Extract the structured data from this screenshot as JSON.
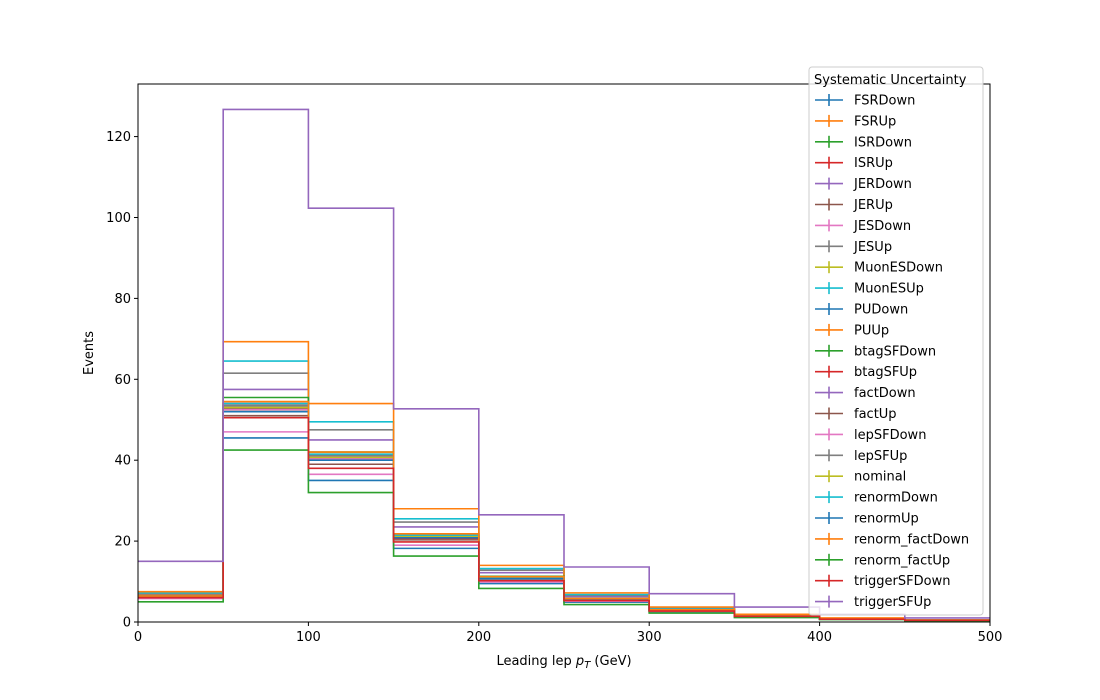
{
  "chart_data": {
    "type": "line",
    "title": "",
    "xlabel": "Leading lep p_T (GeV)",
    "ylabel": "Events",
    "xlim": [
      0,
      500
    ],
    "ylim": [
      0,
      133
    ],
    "grid": false,
    "legend_title": "Systematic Uncertainty",
    "legend_position": "top-right",
    "bin_edges": [
      0,
      50,
      100,
      150,
      200,
      250,
      300,
      350,
      400,
      450,
      500
    ],
    "x_ticks": [
      0,
      100,
      200,
      300,
      400,
      500
    ],
    "y_ticks": [
      0,
      20,
      40,
      60,
      80,
      100,
      120
    ],
    "series": [
      {
        "name": "FSRDown",
        "color": "#1f77b4",
        "values": [
          5.9,
          45.5,
          35.0,
          18.2,
          9.5,
          4.9,
          2.5,
          1.3,
          0.7,
          0.4
        ]
      },
      {
        "name": "FSRUp",
        "color": "#ff7f0e",
        "values": [
          6.8,
          54.0,
          41.5,
          21.5,
          11.2,
          5.8,
          3.0,
          1.5,
          0.8,
          0.4
        ]
      },
      {
        "name": "ISRDown",
        "color": "#2ca02c",
        "values": [
          6.1,
          52.5,
          40.0,
          20.8,
          10.8,
          5.6,
          2.9,
          1.5,
          0.8,
          0.4
        ]
      },
      {
        "name": "ISRUp",
        "color": "#d62728",
        "values": [
          6.4,
          53.5,
          41.0,
          21.2,
          11.0,
          5.7,
          2.9,
          1.5,
          0.8,
          0.4
        ]
      },
      {
        "name": "JERDown",
        "color": "#9467bd",
        "values": [
          6.5,
          57.5,
          45.0,
          23.5,
          12.2,
          6.3,
          3.3,
          1.7,
          0.9,
          0.5
        ]
      },
      {
        "name": "JERUp",
        "color": "#8c564b",
        "values": [
          6.0,
          51.0,
          39.0,
          20.3,
          10.6,
          5.5,
          2.8,
          1.4,
          0.7,
          0.4
        ]
      },
      {
        "name": "JESDown",
        "color": "#e377c2",
        "values": [
          5.8,
          47.0,
          36.5,
          19.0,
          9.9,
          5.1,
          2.6,
          1.4,
          0.7,
          0.4
        ]
      },
      {
        "name": "JESUp",
        "color": "#7f7f7f",
        "values": [
          7.0,
          61.5,
          47.5,
          24.7,
          12.8,
          6.6,
          3.4,
          1.8,
          0.9,
          0.5
        ]
      },
      {
        "name": "MuonESDown",
        "color": "#bcbd22",
        "values": [
          6.2,
          53.0,
          40.5,
          21.0,
          10.9,
          5.6,
          2.9,
          1.5,
          0.8,
          0.4
        ]
      },
      {
        "name": "MuonESUp",
        "color": "#17becf",
        "values": [
          7.2,
          64.5,
          49.5,
          25.5,
          13.2,
          6.8,
          3.5,
          1.8,
          0.9,
          0.5
        ]
      },
      {
        "name": "PUDown",
        "color": "#1f77b4",
        "values": [
          6.3,
          53.0,
          41.0,
          21.2,
          11.0,
          5.7,
          2.9,
          1.5,
          0.8,
          0.4
        ]
      },
      {
        "name": "PUUp",
        "color": "#ff7f0e",
        "values": [
          7.5,
          69.3,
          54.0,
          28.0,
          14.0,
          7.2,
          3.7,
          1.9,
          1.0,
          0.5
        ]
      },
      {
        "name": "btagSFDown",
        "color": "#2ca02c",
        "values": [
          6.4,
          55.5,
          42.0,
          21.8,
          11.3,
          5.8,
          3.0,
          1.5,
          0.8,
          0.4
        ]
      },
      {
        "name": "btagSFUp",
        "color": "#d62728",
        "values": [
          6.1,
          52.0,
          40.2,
          20.7,
          10.7,
          5.5,
          2.8,
          1.4,
          0.7,
          0.4
        ]
      },
      {
        "name": "factDown",
        "color": "#9467bd",
        "values": [
          6.2,
          54.0,
          41.0,
          21.1,
          10.9,
          5.6,
          2.9,
          1.5,
          0.8,
          0.4
        ]
      },
      {
        "name": "factUp",
        "color": "#8c564b",
        "values": [
          6.2,
          52.8,
          40.5,
          21.0,
          10.8,
          5.6,
          2.9,
          1.5,
          0.8,
          0.4
        ]
      },
      {
        "name": "lepSFDown",
        "color": "#e377c2",
        "values": [
          6.1,
          52.5,
          40.3,
          20.9,
          10.8,
          5.6,
          2.9,
          1.5,
          0.8,
          0.4
        ]
      },
      {
        "name": "lepSFUp",
        "color": "#7f7f7f",
        "values": [
          6.3,
          53.5,
          41.2,
          21.3,
          11.0,
          5.7,
          2.9,
          1.5,
          0.8,
          0.4
        ]
      },
      {
        "name": "nominal",
        "color": "#bcbd22",
        "values": [
          6.2,
          53.0,
          40.7,
          21.1,
          10.9,
          5.6,
          2.9,
          1.5,
          0.8,
          0.4
        ]
      },
      {
        "name": "renormDown",
        "color": "#17becf",
        "values": [
          6.3,
          54.0,
          41.5,
          21.5,
          11.1,
          5.7,
          2.9,
          1.5,
          0.8,
          0.4
        ]
      },
      {
        "name": "renormUp",
        "color": "#1f77b4",
        "values": [
          6.1,
          52.0,
          40.0,
          20.8,
          10.7,
          5.5,
          2.8,
          1.4,
          0.7,
          0.4
        ]
      },
      {
        "name": "renorm_factDown",
        "color": "#ff7f0e",
        "values": [
          6.4,
          54.5,
          42.0,
          21.8,
          11.2,
          5.8,
          3.0,
          1.5,
          0.8,
          0.4
        ]
      },
      {
        "name": "renorm_factUp",
        "color": "#2ca02c",
        "values": [
          5.0,
          42.5,
          32.0,
          16.3,
          8.3,
          4.3,
          2.2,
          1.1,
          0.6,
          0.3
        ]
      },
      {
        "name": "triggerSFDown",
        "color": "#d62728",
        "values": [
          6.0,
          50.5,
          38.0,
          19.8,
          10.2,
          5.3,
          2.7,
          1.4,
          0.7,
          0.4
        ]
      },
      {
        "name": "triggerSFUp",
        "color": "#9467bd",
        "values": [
          15.0,
          126.7,
          102.3,
          52.7,
          26.5,
          13.6,
          7.0,
          3.7,
          1.9,
          1.0
        ]
      }
    ]
  }
}
